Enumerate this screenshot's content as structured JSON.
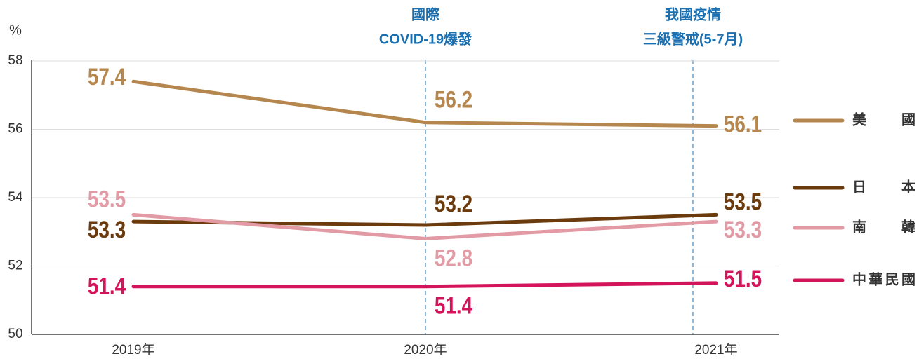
{
  "chart_data": {
    "type": "line",
    "y_label": "%",
    "categories": [
      "2019年",
      "2020年",
      "2021年"
    ],
    "series": [
      {
        "name": "美國",
        "color": "#b5874e",
        "values": [
          57.4,
          56.2,
          56.1
        ]
      },
      {
        "name": "日本",
        "color": "#6b3a0d",
        "values": [
          53.3,
          53.2,
          53.5
        ]
      },
      {
        "name": "南韓",
        "color": "#e29aa5",
        "values": [
          53.5,
          52.8,
          53.3
        ]
      },
      {
        "name": "中華民國",
        "color": "#d4145a",
        "values": [
          51.4,
          51.4,
          51.5
        ]
      }
    ],
    "annotations": [
      {
        "lines": [
          "國際",
          "COVID-19爆發"
        ]
      },
      {
        "lines": [
          "我國疫情",
          "三級警戒(5-7月)"
        ]
      }
    ],
    "annotation_color": "#1a6fb0",
    "ylim": [
      50,
      58
    ],
    "yticks": [
      50,
      52,
      54,
      56,
      58
    ],
    "grid": true,
    "legend": "right"
  }
}
